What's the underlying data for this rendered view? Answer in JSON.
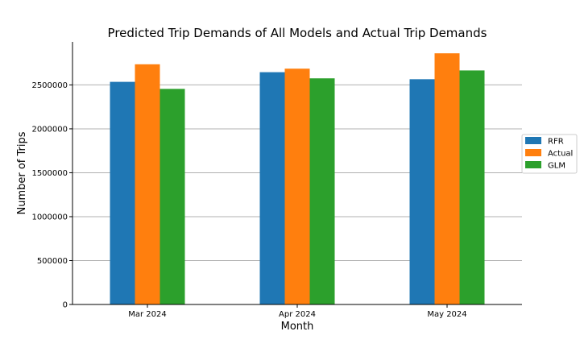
{
  "chart_data": {
    "type": "bar",
    "title": "Predicted Trip Demands of All Models and Actual Trip Demands",
    "xlabel": "Month",
    "ylabel": "Number of Trips",
    "categories": [
      "Mar 2024",
      "Apr 2024",
      "May 2024"
    ],
    "series": [
      {
        "name": "RFR",
        "values": [
          2535000,
          2645000,
          2565000
        ],
        "color": "#1f77b4"
      },
      {
        "name": "Actual",
        "values": [
          2735000,
          2685000,
          2860000
        ],
        "color": "#ff7f0e"
      },
      {
        "name": "GLM",
        "values": [
          2455000,
          2575000,
          2665000
        ],
        "color": "#2ca02c"
      }
    ],
    "ylim": [
      0,
      2990000
    ],
    "yticks": [
      0,
      500000,
      1000000,
      1500000,
      2000000,
      2500000
    ],
    "ytick_labels": [
      "0",
      "500000",
      "1000000",
      "1500000",
      "2000000",
      "2500000"
    ],
    "grid": "horizontal",
    "legend_position": "right"
  }
}
